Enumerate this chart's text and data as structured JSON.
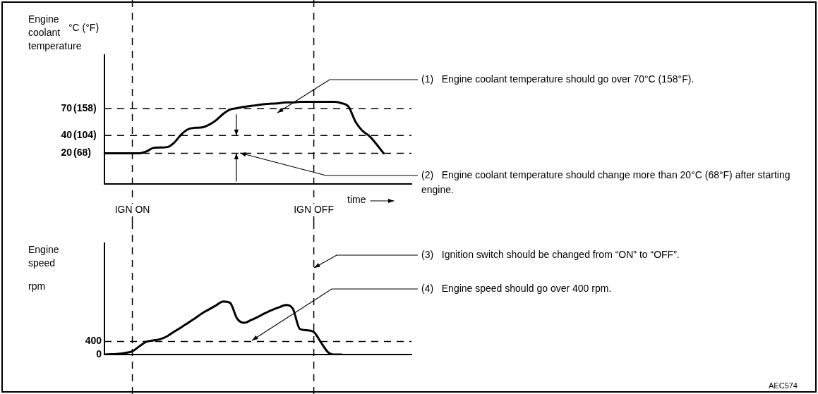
{
  "chart_data": [
    {
      "type": "line",
      "ylabel": "Engine coolant temperature",
      "xlabel": "time",
      "categories": [
        null,
        null,
        null,
        null,
        null,
        null,
        null,
        null,
        null,
        null,
        null,
        null,
        null,
        null,
        null,
        null,
        null,
        null,
        null,
        null,
        null,
        null,
        null,
        null,
        null,
        null,
        null,
        null,
        null,
        null,
        null,
        null,
        null,
        null,
        null,
        null,
        null,
        null,
        null,
        null,
        null,
        null,
        null,
        null,
        null
      ],
      "series": [
        {
          "color": "#000000",
          "values": [
            20,
            20,
            20,
            20,
            20,
            20,
            22,
            26,
            26.5,
            27,
            32,
            41,
            47,
            48.5,
            49,
            52,
            57,
            64,
            69,
            70.5,
            72,
            73,
            74,
            75,
            75.5,
            76,
            77,
            77,
            77.5,
            77.5,
            77.5,
            77.5,
            77.5,
            77.5,
            76,
            72,
            55,
            45,
            39,
            30,
            20,
            null,
            null,
            null,
            null
          ]
        }
      ],
      "ylim": [
        -14,
        130
      ],
      "yticks": [
        20,
        40,
        70
      ],
      "tick_labels": "y",
      "legend": false,
      "marker": "none",
      "line_style": "solid",
      "ref_lines": [
        {
          "axis": "y",
          "value": 70,
          "color": "#000000",
          "line_style": "dashed"
        },
        {
          "axis": "y",
          "value": 40,
          "color": "#000000",
          "line_style": "dashed"
        },
        {
          "axis": "y",
          "value": 20,
          "color": "#000000",
          "line_style": "dashed"
        }
      ],
      "annotations": [
        "°C (°F)",
        "(1)   Engine coolant temperature should go over 70°C (158°F).",
        "(2)   Engine coolant temperature should change more than 20°C (68°F) after starting engine.",
        "IGN ON",
        "IGN OFF",
        "(68)",
        "(104)",
        "(158)"
      ]
    },
    {
      "type": "line",
      "ylabel": "Engine speed",
      "categories": [
        null,
        null,
        null,
        null,
        null,
        null,
        null,
        null,
        null,
        null,
        null,
        null,
        null,
        null,
        null,
        null,
        null,
        null,
        null,
        null,
        null,
        null,
        null,
        null,
        null,
        null,
        null,
        null,
        null,
        null,
        null,
        null,
        null,
        null,
        null,
        null,
        null,
        null,
        null,
        null,
        null,
        null,
        null,
        null,
        null
      ],
      "series": [
        {
          "color": "#000000",
          "values": [
            0,
            10,
            20,
            50,
            100,
            250,
            390,
            430,
            470,
            560,
            700,
            830,
            970,
            1110,
            1260,
            1380,
            1500,
            1620,
            1580,
            1100,
            970,
            1050,
            1150,
            1260,
            1360,
            1440,
            1510,
            1400,
            780,
            740,
            690,
            380,
            80,
            0,
            0,
            null,
            null,
            null,
            null,
            null,
            null,
            null,
            null,
            null,
            null
          ]
        }
      ],
      "ylim": [
        0,
        3400
      ],
      "yticks": [
        0,
        400
      ],
      "tick_labels": "y",
      "legend": false,
      "marker": "none",
      "line_style": "solid",
      "ref_lines": [
        {
          "axis": "y",
          "value": 400,
          "color": "#000000",
          "line_style": "dashed"
        }
      ],
      "annotations": [
        "rpm",
        "(3)   Ignition switch should be changed from “ON” to “OFF”.",
        "(4)   Engine speed should go over 400 rpm.",
        "AEC574"
      ]
    }
  ]
}
